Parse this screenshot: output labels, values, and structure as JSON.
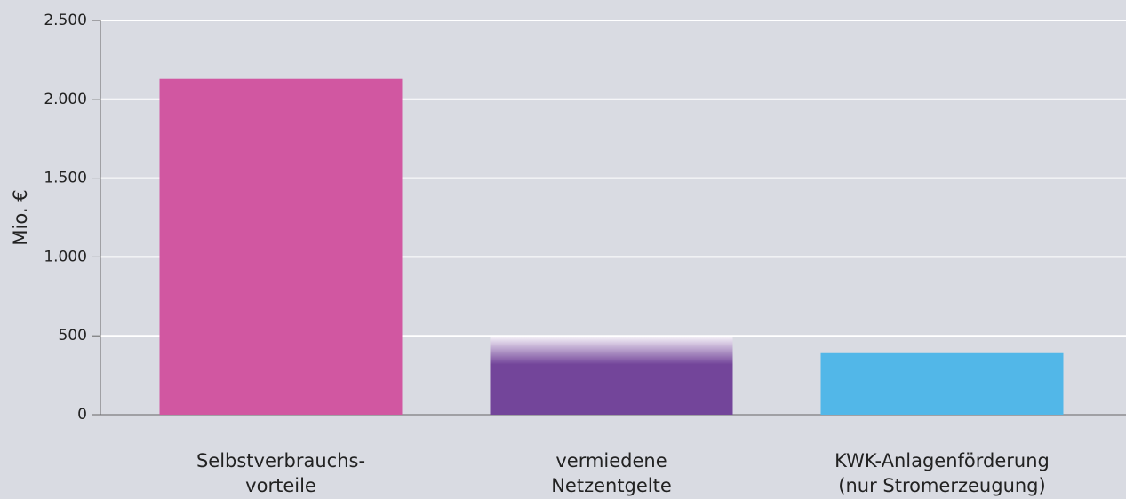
{
  "chart_data": {
    "type": "bar",
    "y_label": "Mio. €",
    "categories": [
      [
        "Selbstverbrauchs-",
        "vorteile"
      ],
      [
        "vermiedene",
        "Netzentgelte"
      ],
      [
        "KWK-Anlagenförderung",
        "(nur Stromerzeugung)"
      ]
    ],
    "values": [
      2130,
      490,
      390
    ],
    "colors": [
      "#d157a1",
      "#73459a",
      "#52b7e8"
    ],
    "ylim": [
      0,
      2500
    ],
    "yticks": [
      0,
      500,
      {
        "value": 1000,
        "label": "1.000"
      },
      {
        "value": 1500,
        "label": "1.500"
      },
      {
        "value": 2000,
        "label": "2.000"
      },
      {
        "value": 2500,
        "label": "2.500"
      }
    ],
    "grid": true
  }
}
